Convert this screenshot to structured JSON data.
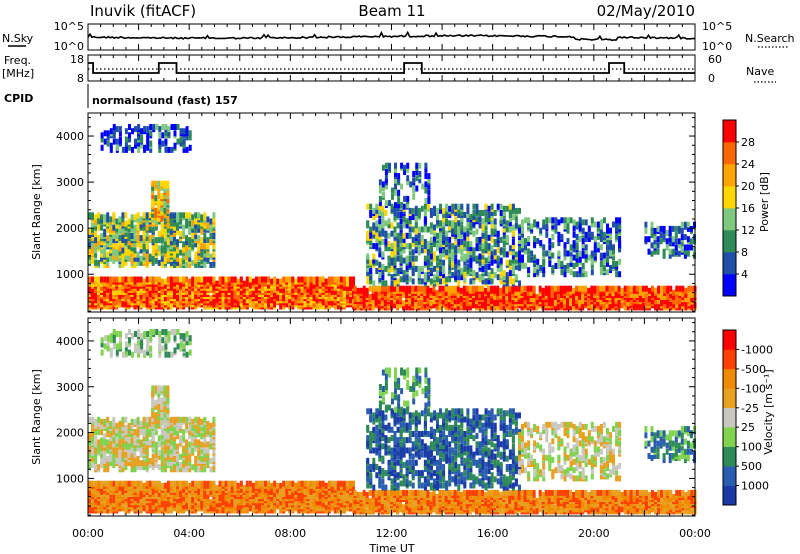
{
  "header": {
    "station": "Inuvik (fitACF)",
    "beam": "Beam 11",
    "date": "02/May/2010"
  },
  "top_panels": {
    "nsky_label": "N.Sky",
    "nsearch_label": "N.Search",
    "noise_ticks_left": [
      "10^5",
      "10^0"
    ],
    "noise_ticks_right": [
      "10^5",
      "10^0"
    ],
    "freq_label": "Freq.",
    "freq_unit": "[MHz]",
    "freq_ticks": [
      "18",
      "8"
    ],
    "nave_label": "Nave",
    "nave_ticks": [
      "60",
      "0"
    ],
    "cpid_label": "CPID",
    "cpid_value": "normalsound (fast) 157"
  },
  "colors": {
    "power_scale": [
      "#0000ff",
      "#1f4fa8",
      "#2e8b57",
      "#7fc97f",
      "#ffd700",
      "#ffa500",
      "#ff6600",
      "#ff0000"
    ],
    "velocity_scale": [
      "#1a3aa8",
      "#2a5db0",
      "#2e8b57",
      "#7fd34f",
      "#c8c8c0",
      "#e8a020",
      "#f08a00",
      "#ff4000",
      "#ff0000"
    ]
  },
  "chart_data": [
    {
      "type": "heatmap",
      "panel": "power",
      "ylabel": "Slant Range [km]",
      "yticks": [
        "1000",
        "2000",
        "3000",
        "4000"
      ],
      "ylim": [
        180,
        4500
      ],
      "xlim": [
        "00:00",
        "24:00"
      ],
      "colorbar_label": "Power [dB]",
      "colorbar_ticks": [
        "4",
        "8",
        "12",
        "16",
        "20",
        "24",
        "28"
      ],
      "colorbar_range": [
        0,
        32
      ]
    },
    {
      "type": "heatmap",
      "panel": "velocity",
      "ylabel": "Slant Range [km]",
      "yticks": [
        "1000",
        "2000",
        "3000",
        "4000"
      ],
      "ylim": [
        180,
        4500
      ],
      "xlim": [
        "00:00",
        "24:00"
      ],
      "xlabel": "Time UT",
      "xticks": [
        "00:00",
        "04:00",
        "08:00",
        "12:00",
        "16:00",
        "20:00",
        "00:00"
      ],
      "colorbar_label": "Velocity [m s⁻¹]",
      "colorbar_ticks": [
        "1000",
        "500",
        "100",
        "25",
        "-25",
        "-100",
        "-500",
        "-1000"
      ]
    }
  ]
}
